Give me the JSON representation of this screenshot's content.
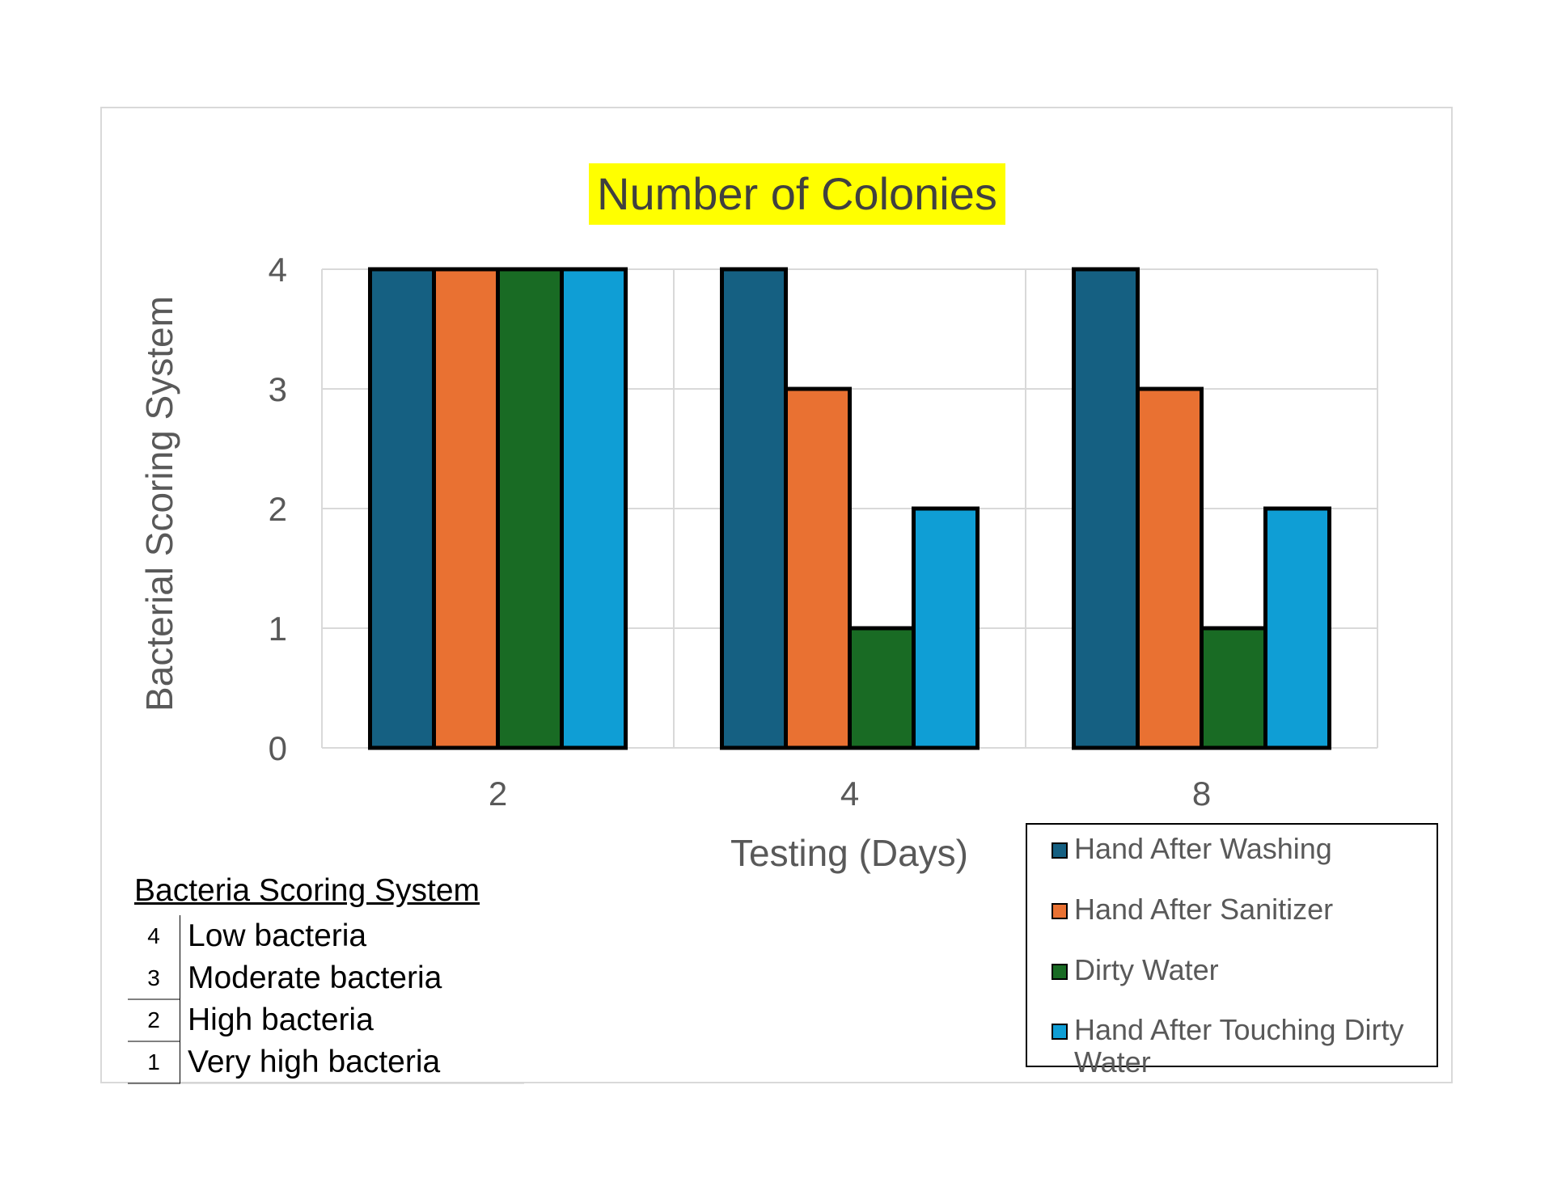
{
  "chart_data": {
    "type": "bar",
    "title": "Number of Colonies",
    "xlabel": "Testing (Days)",
    "ylabel": "Bacterial Scoring System",
    "categories": [
      "2",
      "4",
      "8"
    ],
    "ylim": [
      0,
      4
    ],
    "yticks": [
      "0",
      "1",
      "2",
      "3",
      "4"
    ],
    "grid": true,
    "legend_position": "bottom-right",
    "series": [
      {
        "name": "Hand After Washing",
        "values": [
          4,
          4,
          4
        ],
        "color": "#156082"
      },
      {
        "name": "Hand After Sanitizer",
        "values": [
          4,
          3,
          3
        ],
        "color": "#e97132"
      },
      {
        "name": "Dirty Water",
        "values": [
          4,
          1,
          1
        ],
        "color": "#196b24"
      },
      {
        "name": "Hand After Touching Dirty Water",
        "values": [
          4,
          2,
          2
        ],
        "color": "#0f9ed5"
      }
    ]
  },
  "scoring_key": {
    "title": "Bacteria Scoring System",
    "rows": [
      {
        "score": "4",
        "label": "Low bacteria"
      },
      {
        "score": "3",
        "label": "Moderate bacteria"
      },
      {
        "score": "2",
        "label": "High bacteria"
      },
      {
        "score": "1",
        "label": "Very high bacteria"
      }
    ]
  }
}
